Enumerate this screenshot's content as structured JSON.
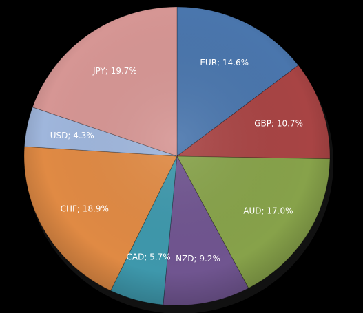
{
  "chart_data": {
    "type": "pie",
    "title": "",
    "start_angle_deg": 0,
    "direction": "clockwise",
    "legend": "none",
    "slices": [
      {
        "label": "EUR",
        "value": 14.6,
        "text": "EUR; 14.6%",
        "color": "#4a76ad"
      },
      {
        "label": "GBP",
        "value": 10.7,
        "text": "GBP; 10.7%",
        "color": "#a84444"
      },
      {
        "label": "AUD",
        "value": 17.0,
        "text": "AUD; 17.0%",
        "color": "#87a24a"
      },
      {
        "label": "NZD",
        "value": 9.2,
        "text": "NZD; 9.2%",
        "color": "#705590"
      },
      {
        "label": "CAD",
        "value": 5.7,
        "text": "CAD; 5.7%",
        "color": "#3e98ac"
      },
      {
        "label": "CHF",
        "value": 18.9,
        "text": "CHF; 18.9%",
        "color": "#e08a44"
      },
      {
        "label": "USD",
        "value": 4.3,
        "text": "USD; 4.3%",
        "color": "#9fb6dc"
      },
      {
        "label": "JPY",
        "value": 19.7,
        "text": "JPY; 19.7%",
        "color": "#d69694"
      }
    ]
  }
}
